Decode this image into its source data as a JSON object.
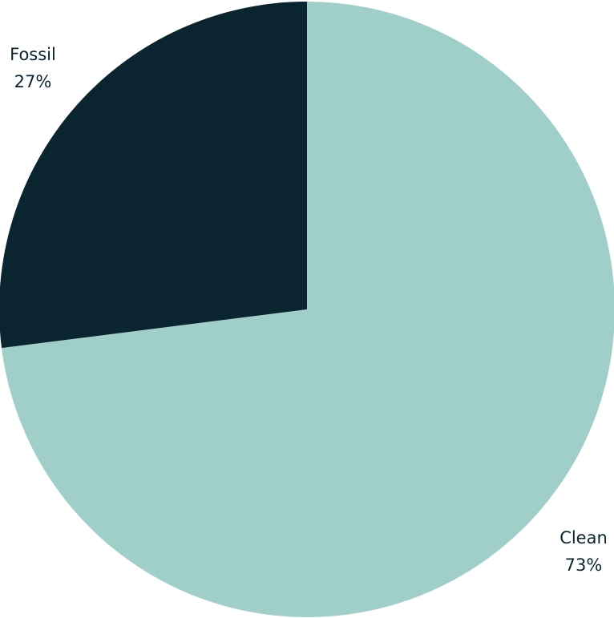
{
  "chart_data": {
    "type": "pie",
    "title": "",
    "categories": [
      "Clean",
      "Fossil"
    ],
    "values": [
      73,
      27
    ],
    "value_labels": [
      "73%",
      "27%"
    ],
    "colors": [
      "#a0cfca",
      "#0a2530"
    ],
    "start_angle_deg": 0,
    "direction": "clockwise",
    "legend": "none"
  }
}
